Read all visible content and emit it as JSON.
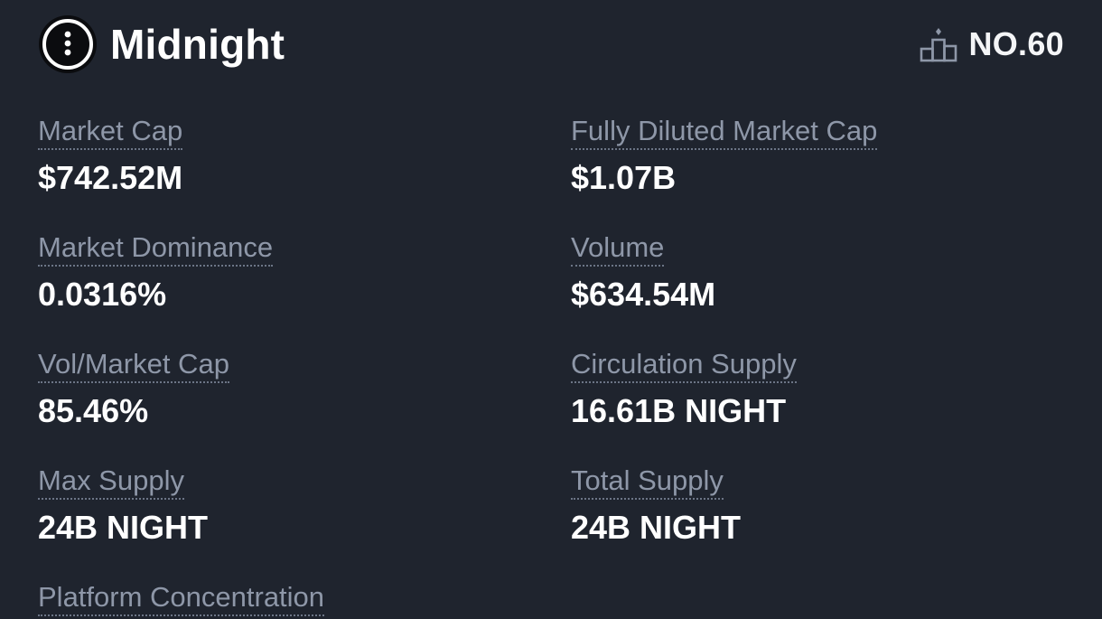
{
  "header": {
    "name": "Midnight",
    "rank": "NO.60",
    "logo_icon": "midnight-logo-icon",
    "rank_icon": "podium-icon"
  },
  "stats": {
    "market_cap": {
      "label": "Market Cap",
      "value": "$742.52M"
    },
    "fully_diluted": {
      "label": "Fully Diluted Market Cap",
      "value": "$1.07B"
    },
    "market_dominance": {
      "label": "Market Dominance",
      "value": "0.0316%"
    },
    "volume": {
      "label": "Volume",
      "value": "$634.54M"
    },
    "vol_market_cap": {
      "label": "Vol/Market Cap",
      "value": "85.46%"
    },
    "circulation_supply": {
      "label": "Circulation Supply",
      "value": "16.61B NIGHT"
    },
    "max_supply": {
      "label": "Max Supply",
      "value": "24B NIGHT"
    },
    "total_supply": {
      "label": "Total Supply",
      "value": "24B NIGHT"
    },
    "platform_concentration": {
      "label": "Platform Concentration"
    }
  },
  "colors": {
    "background": "#1f242e",
    "label": "#8e97a8",
    "value": "#ffffff"
  }
}
